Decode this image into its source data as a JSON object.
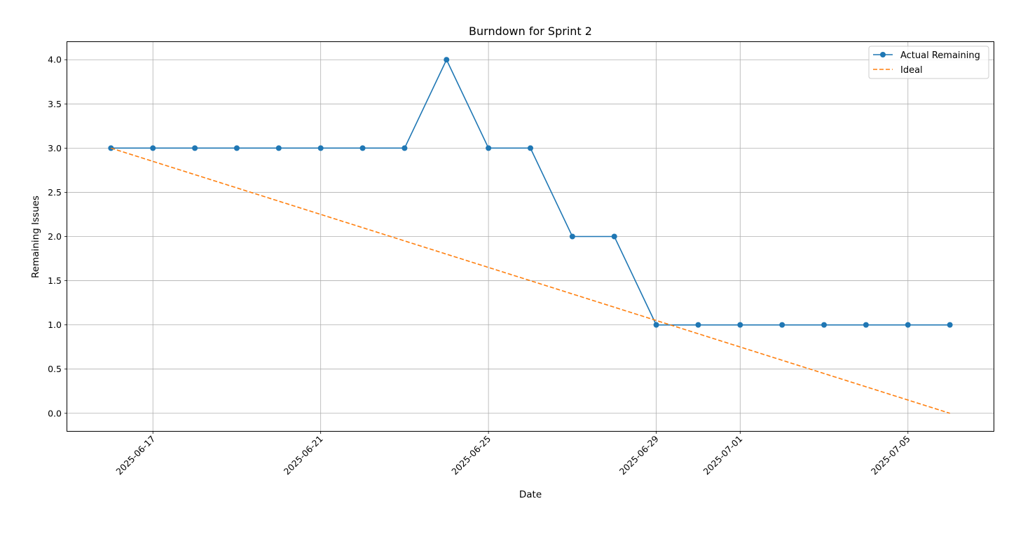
{
  "chart_data": {
    "type": "line",
    "title": "Burndown for Sprint 2",
    "xlabel": "Date",
    "ylabel": "Remaining Issues",
    "x_ticks": [
      "2025-06-17",
      "2025-06-21",
      "2025-06-25",
      "2025-06-29",
      "2025-07-01",
      "2025-07-05"
    ],
    "y_ticks": [
      "0.0",
      "0.5",
      "1.0",
      "1.5",
      "2.0",
      "2.5",
      "3.0",
      "3.5",
      "4.0"
    ],
    "xlim": [
      "2025-06-14T23:00",
      "2025-07-07T01:00"
    ],
    "ylim": [
      -0.2,
      4.2
    ],
    "grid": true,
    "legend_position": "upper right",
    "x_tick_rotation": 45,
    "series": [
      {
        "name": "Actual Remaining",
        "color": "#1f77b4",
        "style": "solid",
        "marker": "circle",
        "x": [
          "2025-06-16",
          "2025-06-17",
          "2025-06-18",
          "2025-06-19",
          "2025-06-20",
          "2025-06-21",
          "2025-06-22",
          "2025-06-23",
          "2025-06-24",
          "2025-06-25",
          "2025-06-26",
          "2025-06-27",
          "2025-06-28",
          "2025-06-29",
          "2025-06-30",
          "2025-07-01",
          "2025-07-02",
          "2025-07-03",
          "2025-07-04",
          "2025-07-05",
          "2025-07-06"
        ],
        "values": [
          3,
          3,
          3,
          3,
          3,
          3,
          3,
          3,
          4,
          3,
          3,
          2,
          2,
          1,
          1,
          1,
          1,
          1,
          1,
          1,
          1
        ]
      },
      {
        "name": "Ideal",
        "color": "#ff7f0e",
        "style": "dashed",
        "marker": "none",
        "x": [
          "2025-06-16",
          "2025-07-06"
        ],
        "values": [
          3,
          0
        ]
      }
    ]
  }
}
